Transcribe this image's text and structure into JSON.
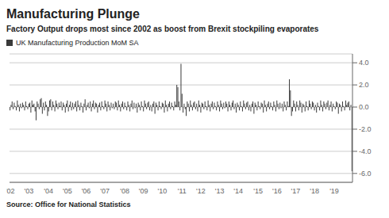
{
  "chart_data": {
    "type": "bar",
    "title": "Manufacturing Plunge",
    "subtitle": "Factory Output drops most since 2002 as boost from Brexit stockpiling evaporates",
    "legend": "upper left",
    "series": [
      {
        "name": "UK Manufacturing Production MoM SA",
        "color": "#3a3a3a",
        "values": [
          -0.3,
          0.2,
          0.5,
          -0.2,
          0.4,
          0.1,
          -0.3,
          0.6,
          0.2,
          -0.4,
          0.3,
          -0.1,
          0.4,
          0.2,
          -0.3,
          0.5,
          0.1,
          -0.2,
          0.3,
          0.4,
          -0.5,
          0.6,
          0.2,
          0.3,
          -0.4,
          -1.2,
          0.5,
          0.3,
          -0.2,
          0.7,
          0.8,
          -0.6,
          0.4,
          -0.3,
          0.5,
          0.2,
          -0.8,
          -0.4,
          0.6,
          0.7,
          -0.3,
          0.5,
          0.2,
          -0.4,
          0.6,
          0.3,
          -0.2,
          0.4,
          0.1,
          0.5,
          -0.3,
          0.4,
          0.2,
          -0.5,
          0.3,
          0.6,
          -0.4,
          0.2,
          0.5,
          -0.3,
          0.4,
          -0.2,
          0.3,
          0.5,
          -0.4,
          0.6,
          0.2,
          -0.3,
          0.4,
          0.1,
          -0.5,
          0.3,
          0.7,
          -0.3,
          0.2,
          0.4,
          -0.1,
          0.5,
          -0.4,
          0.3,
          0.6,
          -0.2,
          0.4,
          0.3,
          -0.5,
          0.2,
          0.4,
          -0.3,
          0.5,
          0.1,
          -0.2,
          0.6,
          0.3,
          -0.4,
          0.5,
          0.2,
          -0.3,
          0.4,
          -0.1,
          0.3,
          -0.2,
          0.5,
          0.4,
          -0.3,
          0.6,
          0.2,
          -0.4,
          0.3,
          0.5,
          -0.2,
          0.4,
          0.1,
          -0.3,
          0.5,
          0.2,
          -0.4,
          0.3,
          0.6,
          -0.2,
          0.4,
          -0.1,
          0.3,
          -0.5,
          0.4,
          0.2,
          -0.3,
          0.5,
          0.1,
          -0.4,
          0.6,
          0.3,
          -0.2,
          0.4,
          0.5,
          -0.3,
          0.2,
          -0.4,
          0.3,
          0.5,
          -0.6,
          0.4,
          0.2,
          -0.3,
          0.5,
          0.1,
          -0.2,
          0.4,
          0.3,
          -0.5,
          0.6,
          0.2,
          -0.4,
          0.3,
          0.5,
          -0.2,
          0.4,
          0.1,
          -0.3,
          0.5,
          0.2,
          2.0,
          1.8,
          0.5,
          -0.3,
          3.9,
          1.2,
          -0.5,
          0.3,
          -0.2,
          -0.8,
          0.5,
          0.3,
          -0.4,
          0.6,
          0.2,
          -0.3,
          0.4,
          0.5,
          -0.2,
          0.3,
          -0.4,
          0.6,
          0.2,
          -0.5,
          0.4,
          0.3,
          -0.2,
          0.5,
          0.1,
          -0.3,
          0.6,
          0.2,
          -0.4,
          0.3,
          0.5,
          -0.2,
          0.4,
          0.1,
          -0.3,
          0.5,
          0.2,
          -0.4,
          0.6,
          0.3,
          -0.2,
          0.4,
          -0.1,
          0.5,
          0.3,
          -0.4,
          0.5,
          0.2,
          -0.3,
          0.4,
          0.6,
          -0.2,
          0.3,
          -0.5,
          0.4,
          0.2,
          -0.3,
          0.5,
          0.1,
          -0.4,
          0.6,
          0.3,
          -0.2,
          0.4,
          0.5,
          -0.3,
          0.2,
          -0.4,
          0.3,
          0.5,
          -0.6,
          0.4,
          0.2,
          -0.3,
          0.5,
          0.1,
          -0.2,
          0.4,
          0.3,
          -0.5,
          0.6,
          0.2,
          -0.4,
          0.3,
          0.5,
          -0.2,
          0.4,
          0.1,
          -0.3,
          0.5,
          0.2,
          -0.4,
          0.6,
          0.3,
          -0.2,
          0.4,
          -0.1,
          0.3,
          -0.4,
          0.5,
          0.2,
          -0.3,
          0.5,
          0.1,
          2.5,
          1.5,
          -0.8,
          -0.4,
          0.6,
          0.3,
          -0.4,
          0.5,
          0.2,
          -0.3,
          0.6,
          0.4,
          -0.5,
          0.3,
          0.2,
          -0.4,
          0.5,
          0.1,
          -0.3,
          0.6,
          0.3,
          -0.2,
          0.5,
          0.4,
          -0.3,
          0.2,
          -0.5,
          0.4,
          0.1,
          -0.3,
          0.6,
          0.2,
          -0.4,
          0.5,
          0.3,
          -0.2,
          0.4,
          0.6,
          -0.3,
          0.2,
          0.5,
          -0.4,
          0.3,
          0.1,
          -0.2,
          0.5,
          0.4,
          -0.6,
          0.3,
          0.2,
          -0.4,
          0.5,
          0.1,
          -0.3,
          0.6,
          0.2,
          0.4,
          0.5,
          -0.3,
          0.2,
          -5.8
        ]
      }
    ],
    "categories": [
      "'02",
      null,
      null,
      null,
      null,
      null,
      null,
      null,
      null,
      null,
      null,
      null,
      null,
      null,
      null,
      null,
      null,
      null,
      "'03",
      null,
      null,
      null,
      null,
      null,
      null,
      null,
      null,
      null,
      null,
      null,
      null,
      null,
      null,
      null,
      null,
      null,
      null,
      "'04",
      null,
      null,
      null,
      null,
      null,
      null,
      null,
      null,
      null,
      null,
      null,
      null,
      null,
      null,
      null,
      null,
      null,
      "'05",
      null,
      null,
      null,
      null,
      null,
      null,
      null,
      null,
      null,
      null,
      null,
      null,
      null,
      null,
      null,
      null,
      null,
      "'06",
      null,
      null,
      null,
      null,
      null,
      null,
      null,
      null,
      null,
      null,
      null,
      null,
      null,
      null,
      null,
      null,
      null,
      "'07",
      null,
      null,
      null,
      null,
      null,
      null,
      null,
      null,
      null,
      null,
      null,
      null,
      null,
      null,
      null,
      null,
      null,
      null,
      "'08",
      null,
      null,
      null,
      null,
      null,
      null,
      null,
      null,
      null,
      null,
      null,
      null,
      null,
      null,
      null,
      null,
      null,
      "'09",
      null,
      null,
      null,
      null,
      null,
      null,
      null,
      null,
      null,
      null,
      null,
      null,
      null,
      null,
      null,
      null,
      null,
      "'10",
      null,
      null,
      null,
      null,
      null,
      null,
      null,
      null,
      null,
      null,
      null,
      null,
      null,
      null,
      null,
      null,
      null,
      null,
      "'11",
      null,
      null,
      null,
      null,
      null,
      null,
      null,
      null,
      null,
      null,
      null,
      null,
      null,
      null,
      null,
      null,
      null,
      "'12",
      null,
      null,
      null,
      null,
      null,
      null,
      null,
      null,
      null,
      null,
      null,
      null,
      null,
      null,
      null,
      null,
      null,
      "'13",
      null,
      null,
      null,
      null,
      null,
      null,
      null,
      null,
      null,
      null,
      null,
      null,
      null,
      null,
      null,
      null,
      null,
      "'14",
      null,
      null,
      null,
      null,
      null,
      null,
      null,
      null,
      null,
      null,
      null,
      null,
      null,
      null,
      null,
      null,
      null,
      null,
      "'15",
      null,
      null,
      null,
      null,
      null,
      null,
      null,
      null,
      null,
      null,
      null,
      null,
      null,
      null,
      null,
      null,
      null,
      "'16",
      null,
      null,
      null,
      null,
      null,
      null,
      null,
      null,
      null,
      null,
      null,
      null,
      null,
      null,
      null,
      null,
      null,
      "'17",
      null,
      null,
      null,
      null,
      null,
      null,
      null,
      null,
      null,
      null,
      null,
      null,
      null,
      null,
      null,
      null,
      null,
      "'18",
      null,
      null,
      null,
      null,
      null,
      null,
      null,
      null,
      null,
      null,
      null,
      null,
      null,
      null,
      null,
      null,
      null,
      null,
      "'19",
      null,
      null,
      null,
      null,
      null,
      null,
      null,
      null,
      null,
      null,
      null,
      null,
      null,
      null,
      null,
      null,
      null
    ],
    "ylim": [
      -6.8,
      4.8
    ],
    "yticks": [
      {
        "value": -6.0,
        "label": "-6.0"
      },
      {
        "value": -4.0,
        "label": "-4.0"
      },
      {
        "value": -2.0,
        "label": "-2.0"
      },
      {
        "value": 0.0,
        "label": "0.0"
      },
      {
        "value": 2.0,
        "label": "2.0"
      },
      {
        "value": 4.0,
        "label": "4.0"
      }
    ],
    "grid": true,
    "source": "Source: Office for National Statistics"
  }
}
